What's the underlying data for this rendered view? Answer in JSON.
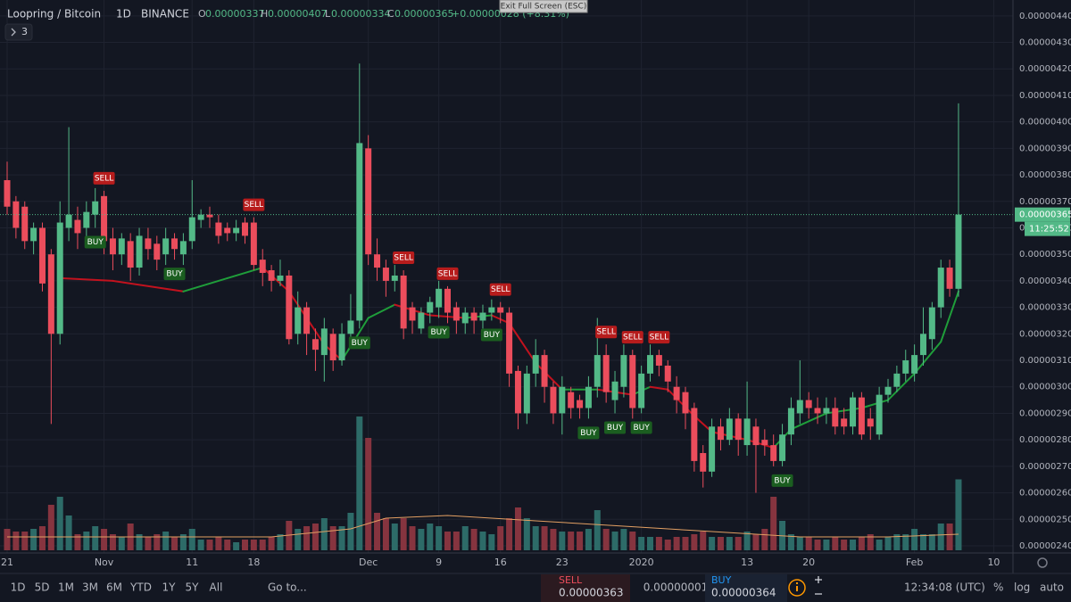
{
  "header": {
    "symbol": "Loopring / Bitcoin",
    "interval": "1D",
    "exchange": "BINANCE",
    "open_label": "O",
    "open": "0.00000337",
    "high_label": "H",
    "high": "0.00000407",
    "low_label": "L",
    "low": "0.00000334",
    "close_label": "C",
    "close": "0.00000365",
    "change": "+0.00000028 (+8.31%)",
    "indicators_count": "3",
    "tooltip": "Exit Full Screen (ESC)",
    "countdown": "11:25:52"
  },
  "toolbar": {
    "ranges": [
      "1D",
      "5D",
      "1M",
      "3M",
      "6M",
      "YTD",
      "1Y",
      "5Y",
      "All"
    ],
    "goto": "Go to...",
    "sell_label": "SELL",
    "sell_price": "0.00000363",
    "spread": "0.00000001",
    "buy_label": "BUY",
    "buy_price": "0.00000364",
    "clock": "12:34:08 (UTC)",
    "percent": "%",
    "log": "log",
    "auto": "auto"
  },
  "chart_data": {
    "type": "candlestick",
    "up_color": "#53b987",
    "down_color": "#eb4d5c",
    "volume_up_color": "#2d6b68",
    "volume_down_color": "#86343f",
    "ma_up_color": "#1f9e3a",
    "ma_down_color": "#c2121e",
    "volume_ma_color": "#e3a063",
    "grid": true,
    "categories": [
      "21",
      null,
      null,
      null,
      null,
      null,
      null,
      null,
      null,
      null,
      null,
      "Nov",
      null,
      null,
      null,
      null,
      null,
      null,
      null,
      null,
      null,
      "11",
      null,
      null,
      null,
      null,
      null,
      null,
      "18",
      null,
      null,
      null,
      null,
      null,
      null,
      null,
      null,
      null,
      null,
      null,
      null,
      "Dec",
      null,
      null,
      null,
      null,
      null,
      null,
      null,
      "9",
      null,
      null,
      null,
      null,
      null,
      null,
      "16",
      null,
      null,
      null,
      null,
      null,
      null,
      "23",
      null,
      null,
      null,
      null,
      null,
      null,
      null,
      null,
      "2020",
      null,
      null,
      null,
      null,
      null,
      null,
      null,
      null,
      null,
      null,
      null,
      "13",
      null,
      null,
      null,
      null,
      null,
      null,
      "20",
      null,
      null,
      null,
      null,
      null,
      null,
      null,
      null,
      null,
      null,
      null,
      "Feb",
      null,
      null,
      null,
      null,
      null,
      null,
      null,
      null,
      "10"
    ],
    "open": [
      3.78e-06,
      3.7e-06,
      3.68e-06,
      3.55e-06,
      3.6e-06,
      3.5e-06,
      3.2e-06,
      3.6e-06,
      3.63e-06,
      3.6e-06,
      3.65e-06,
      3.72e-06,
      3.56e-06,
      3.5e-06,
      3.55e-06,
      3.45e-06,
      3.56e-06,
      3.54e-06,
      3.5e-06,
      3.56e-06,
      3.5e-06,
      3.55e-06,
      3.63e-06,
      3.65e-06,
      3.62e-06,
      3.6e-06,
      3.58e-06,
      3.62e-06,
      3.62e-06,
      3.48e-06,
      3.44e-06,
      3.4e-06,
      3.42e-06,
      3.2e-06,
      3.3e-06,
      3.18e-06,
      3.12e-06,
      3.2e-06,
      3.1e-06,
      3.2e-06,
      3.25e-06,
      3.9e-06,
      3.5e-06,
      3.45e-06,
      3.4e-06,
      3.42e-06,
      3.3e-06,
      3.22e-06,
      3.28e-06,
      3.3e-06,
      3.37e-06,
      3.3e-06,
      3.24e-06,
      3.28e-06,
      3.25e-06,
      3.28e-06,
      3.3e-06,
      3.28e-06,
      3.06e-06,
      2.9e-06,
      3.05e-06,
      3.12e-06,
      3e-06,
      2.9e-06,
      2.98e-06,
      2.95e-06,
      2.92e-06,
      3e-06,
      3.12e-06,
      2.95e-06,
      3e-06,
      3.12e-06,
      2.92e-06,
      3.05e-06,
      3.12e-06,
      3.08e-06,
      3e-06,
      2.98e-06,
      2.92e-06,
      2.75e-06,
      2.68e-06,
      2.85e-06,
      2.8e-06,
      2.88e-06,
      2.78e-06,
      2.85e-06,
      2.8e-06,
      2.78e-06,
      2.72e-06,
      2.82e-06,
      2.9e-06,
      2.95e-06,
      2.92e-06,
      2.9e-06,
      2.92e-06,
      2.88e-06,
      2.85e-06,
      2.96e-06,
      2.88e-06,
      2.82e-06,
      2.97e-06,
      3e-06,
      3.05e-06,
      3.05e-06,
      3.12e-06,
      3.18e-06,
      3.3e-06,
      3.45e-06,
      3.37e-06,
      null,
      null,
      null,
      null
    ],
    "high": [
      3.85e-06,
      3.72e-06,
      3.7e-06,
      3.62e-06,
      3.62e-06,
      3.52e-06,
      3.7e-06,
      3.98e-06,
      3.68e-06,
      3.7e-06,
      3.75e-06,
      3.74e-06,
      3.6e-06,
      3.58e-06,
      3.58e-06,
      3.6e-06,
      3.6e-06,
      3.57e-06,
      3.6e-06,
      3.58e-06,
      3.58e-06,
      3.78e-06,
      3.67e-06,
      3.68e-06,
      3.65e-06,
      3.62e-06,
      3.63e-06,
      3.64e-06,
      3.64e-06,
      3.52e-06,
      3.46e-06,
      3.48e-06,
      3.44e-06,
      3.36e-06,
      3.32e-06,
      3.22e-06,
      3.26e-06,
      3.22e-06,
      3.24e-06,
      3.35e-06,
      4.22e-06,
      3.95e-06,
      3.56e-06,
      3.48e-06,
      3.46e-06,
      3.44e-06,
      3.32e-06,
      3.3e-06,
      3.34e-06,
      3.4e-06,
      3.38e-06,
      3.32e-06,
      3.3e-06,
      3.3e-06,
      3.31e-06,
      3.33e-06,
      3.32e-06,
      3.3e-06,
      3.08e-06,
      3.08e-06,
      3.18e-06,
      3.14e-06,
      3.02e-06,
      3.04e-06,
      3e-06,
      2.97e-06,
      3.04e-06,
      3.26e-06,
      3.16e-06,
      3.06e-06,
      3.16e-06,
      3.14e-06,
      3.08e-06,
      3.16e-06,
      3.14e-06,
      3.1e-06,
      3.04e-06,
      3e-06,
      2.94e-06,
      2.78e-06,
      2.88e-06,
      2.88e-06,
      2.92e-06,
      2.9e-06,
      3.02e-06,
      2.88e-06,
      2.84e-06,
      2.82e-06,
      2.86e-06,
      2.96e-06,
      3.1e-06,
      2.98e-06,
      2.96e-06,
      2.96e-06,
      2.96e-06,
      2.92e-06,
      2.98e-06,
      2.98e-06,
      2.92e-06,
      3e-06,
      3.03e-06,
      3.08e-06,
      3.14e-06,
      3.16e-06,
      3.3e-06,
      3.32e-06,
      3.48e-06,
      3.48e-06,
      4.07e-06,
      null,
      null,
      null,
      null
    ],
    "low": [
      3.65e-06,
      3.56e-06,
      3.52e-06,
      3.5e-06,
      3.36e-06,
      2.86e-06,
      3.16e-06,
      3.55e-06,
      3.52e-06,
      3.56e-06,
      3.6e-06,
      3.5e-06,
      3.44e-06,
      3.46e-06,
      3.4e-06,
      3.42e-06,
      3.48e-06,
      3.44e-06,
      3.46e-06,
      3.48e-06,
      3.46e-06,
      3.52e-06,
      3.6e-06,
      3.6e-06,
      3.54e-06,
      3.55e-06,
      3.55e-06,
      3.54e-06,
      3.44e-06,
      3.38e-06,
      3.36e-06,
      3.38e-06,
      3.16e-06,
      3.16e-06,
      3.12e-06,
      3.06e-06,
      3.02e-06,
      3.06e-06,
      3.08e-06,
      3.16e-06,
      3.22e-06,
      3.46e-06,
      3.4e-06,
      3.34e-06,
      3.36e-06,
      3.18e-06,
      3.2e-06,
      3.2e-06,
      3.24e-06,
      3.26e-06,
      3.24e-06,
      3.2e-06,
      3.2e-06,
      3.2e-06,
      3.22e-06,
      3.25e-06,
      3.24e-06,
      3e-06,
      2.84e-06,
      2.86e-06,
      3e-06,
      2.94e-06,
      2.86e-06,
      2.82e-06,
      2.88e-06,
      2.88e-06,
      2.88e-06,
      2.96e-06,
      2.94e-06,
      2.9e-06,
      2.96e-06,
      2.88e-06,
      2.9e-06,
      3.02e-06,
      3.04e-06,
      2.98e-06,
      2.9e-06,
      2.84e-06,
      2.68e-06,
      2.62e-06,
      2.66e-06,
      2.76e-06,
      2.78e-06,
      2.74e-06,
      2.74e-06,
      2.6e-06,
      2.74e-06,
      2.7e-06,
      2.7e-06,
      2.78e-06,
      2.86e-06,
      2.88e-06,
      2.86e-06,
      2.86e-06,
      2.82e-06,
      2.82e-06,
      2.82e-06,
      2.8e-06,
      2.8e-06,
      2.8e-06,
      2.94e-06,
      2.98e-06,
      3.02e-06,
      3.02e-06,
      3.08e-06,
      3.14e-06,
      3.26e-06,
      3.34e-06,
      3.34e-06,
      null,
      null,
      null,
      null
    ],
    "close": [
      3.68e-06,
      3.6e-06,
      3.55e-06,
      3.6e-06,
      3.39e-06,
      3.2e-06,
      3.62e-06,
      3.65e-06,
      3.58e-06,
      3.66e-06,
      3.7e-06,
      3.55e-06,
      3.5e-06,
      3.56e-06,
      3.45e-06,
      3.57e-06,
      3.52e-06,
      3.48e-06,
      3.56e-06,
      3.52e-06,
      3.55e-06,
      3.64e-06,
      3.65e-06,
      3.64e-06,
      3.57e-06,
      3.58e-06,
      3.6e-06,
      3.57e-06,
      3.46e-06,
      3.43e-06,
      3.4e-06,
      3.42e-06,
      3.18e-06,
      3.3e-06,
      3.2e-06,
      3.14e-06,
      3.22e-06,
      3.1e-06,
      3.2e-06,
      3.25e-06,
      3.92e-06,
      3.5e-06,
      3.45e-06,
      3.4e-06,
      3.42e-06,
      3.22e-06,
      3.25e-06,
      3.28e-06,
      3.32e-06,
      3.37e-06,
      3.28e-06,
      3.25e-06,
      3.28e-06,
      3.25e-06,
      3.28e-06,
      3.3e-06,
      3.28e-06,
      3.05e-06,
      2.9e-06,
      3.05e-06,
      3.12e-06,
      3e-06,
      2.9e-06,
      3e-06,
      2.92e-06,
      2.92e-06,
      3e-06,
      3.12e-06,
      2.98e-06,
      3.02e-06,
      3.12e-06,
      2.92e-06,
      3.05e-06,
      3.12e-06,
      3.08e-06,
      3.02e-06,
      2.95e-06,
      2.9e-06,
      2.72e-06,
      2.68e-06,
      2.85e-06,
      2.8e-06,
      2.88e-06,
      2.8e-06,
      2.88e-06,
      2.78e-06,
      2.78e-06,
      2.72e-06,
      2.82e-06,
      2.92e-06,
      2.95e-06,
      2.92e-06,
      2.9e-06,
      2.92e-06,
      2.85e-06,
      2.85e-06,
      2.96e-06,
      2.82e-06,
      2.85e-06,
      2.97e-06,
      3e-06,
      3.05e-06,
      3.1e-06,
      3.12e-06,
      3.2e-06,
      3.3e-06,
      3.45e-06,
      3.37e-06,
      3.65e-06,
      null,
      null,
      null,
      null
    ],
    "volume": [
      16,
      14,
      14,
      16,
      18,
      34,
      40,
      26,
      12,
      14,
      18,
      16,
      12,
      10,
      20,
      12,
      10,
      12,
      14,
      10,
      12,
      16,
      8,
      8,
      10,
      8,
      6,
      8,
      8,
      8,
      10,
      12,
      22,
      16,
      18,
      20,
      24,
      18,
      18,
      28,
      100,
      84,
      28,
      24,
      20,
      24,
      18,
      16,
      20,
      18,
      14,
      14,
      18,
      16,
      14,
      12,
      18,
      24,
      32,
      24,
      18,
      18,
      16,
      14,
      14,
      14,
      16,
      30,
      16,
      14,
      16,
      14,
      10,
      10,
      10,
      8,
      10,
      10,
      12,
      14,
      10,
      10,
      10,
      10,
      14,
      12,
      16,
      40,
      22,
      12,
      10,
      10,
      8,
      8,
      10,
      8,
      8,
      10,
      12,
      8,
      10,
      12,
      12,
      16,
      12,
      12,
      20,
      20,
      53,
      null,
      null,
      null,
      null
    ],
    "vlim": [
      0,
      100
    ],
    "ma": {
      "x": [
        6,
        12,
        20,
        25,
        29,
        32,
        36,
        38,
        41,
        44,
        48,
        52,
        55,
        57,
        60,
        63,
        67,
        71,
        73,
        75,
        78,
        80,
        84,
        87,
        89,
        93,
        97,
        100,
        103,
        106,
        108
      ],
      "values": [
        3.41e-06,
        3.4e-06,
        3.36e-06,
        3.41e-06,
        3.45e-06,
        3.36e-06,
        3.16e-06,
        3.1e-06,
        3.26e-06,
        3.31e-06,
        3.27e-06,
        3.26e-06,
        3.27e-06,
        3.24e-06,
        3.09e-06,
        2.99e-06,
        2.99e-06,
        2.97e-06,
        3e-06,
        2.99e-06,
        2.89e-06,
        2.83e-06,
        2.8e-06,
        2.77e-06,
        2.84e-06,
        2.9e-06,
        2.92e-06,
        2.95e-06,
        3.05e-06,
        3.17e-06,
        3.36e-06
      ]
    },
    "volume_ma": {
      "x": [
        0,
        30,
        39,
        43,
        50,
        60,
        70,
        80,
        90,
        100,
        108
      ],
      "values": [
        10,
        10,
        16,
        24,
        26,
        22,
        18,
        14,
        10,
        10,
        12
      ]
    },
    "signals": [
      {
        "label": "BUY",
        "index": 10
      },
      {
        "label": "SELL",
        "index": 11
      },
      {
        "label": "BUY",
        "index": 19
      },
      {
        "label": "SELL",
        "index": 28
      },
      {
        "label": "BUY",
        "index": 40
      },
      {
        "label": "SELL",
        "index": 45
      },
      {
        "label": "BUY",
        "index": 49
      },
      {
        "label": "SELL",
        "index": 50
      },
      {
        "label": "BUY",
        "index": 55
      },
      {
        "label": "SELL",
        "index": 56
      },
      {
        "label": "BUY",
        "index": 66
      },
      {
        "label": "SELL",
        "index": 68
      },
      {
        "label": "BUY",
        "index": 69
      },
      {
        "label": "SELL",
        "index": 71
      },
      {
        "label": "BUY",
        "index": 72
      },
      {
        "label": "SELL",
        "index": 74
      },
      {
        "label": "BUY",
        "index": 88
      }
    ],
    "last_price": {
      "value": 3.65e-06,
      "label": "0.00000365"
    },
    "ylim": [
      2.373e-06,
      4.46e-06
    ],
    "yticks": [
      {
        "value": 4.4e-06,
        "label": "0.00000440"
      },
      {
        "value": 4.3e-06,
        "label": "0.00000430"
      },
      {
        "value": 4.2e-06,
        "label": "0.00000420"
      },
      {
        "value": 4.1e-06,
        "label": "0.00000410"
      },
      {
        "value": 4e-06,
        "label": "0.00000400"
      },
      {
        "value": 3.9e-06,
        "label": "0.00000390"
      },
      {
        "value": 3.8e-06,
        "label": "0.00000380"
      },
      {
        "value": 3.7e-06,
        "label": "0.00000370"
      },
      {
        "value": 3.6e-06,
        "label": "0.00000360"
      },
      {
        "value": 3.5e-06,
        "label": "0.00000350"
      },
      {
        "value": 3.4e-06,
        "label": "0.00000340"
      },
      {
        "value": 3.3e-06,
        "label": "0.00000330"
      },
      {
        "value": 3.2e-06,
        "label": "0.00000320"
      },
      {
        "value": 3.1e-06,
        "label": "0.00000310"
      },
      {
        "value": 3e-06,
        "label": "0.00000300"
      },
      {
        "value": 2.9e-06,
        "label": "0.00000290"
      },
      {
        "value": 2.8e-06,
        "label": "0.00000280"
      },
      {
        "value": 2.7e-06,
        "label": "0.00000270"
      },
      {
        "value": 2.6e-06,
        "label": "0.00000260"
      },
      {
        "value": 2.5e-06,
        "label": "0.00000250"
      },
      {
        "value": 2.4e-06,
        "label": "0.00000240"
      }
    ]
  }
}
